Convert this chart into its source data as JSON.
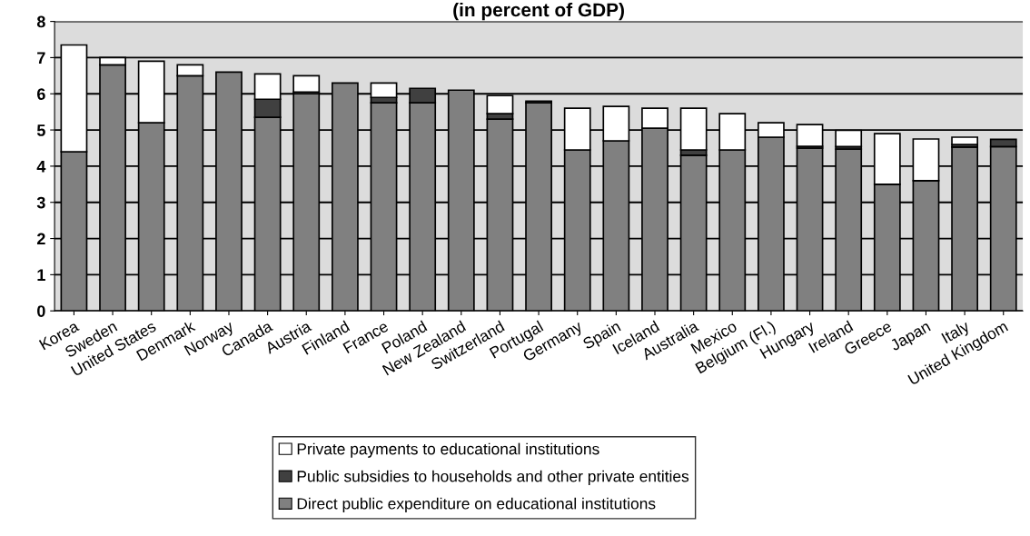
{
  "chart_data": {
    "type": "bar",
    "title": "(in percent of GDP)",
    "stacked": true,
    "categories": [
      "Korea",
      "Sweden",
      "United States",
      "Denmark",
      "Norway",
      "Canada",
      "Austria",
      "Finland",
      "France",
      "Poland",
      "New Zealand",
      "Switzerland",
      "Portugal",
      "Germany",
      "Spain",
      "Iceland",
      "Australia",
      "Mexico",
      "Belgium (Fl.)",
      "Hungary",
      "Ireland",
      "Greece",
      "Japan",
      "Italy",
      "United Kingdom"
    ],
    "series": [
      {
        "name": "Direct public expenditure on educational institutions",
        "color": "#808080",
        "values": [
          4.4,
          6.8,
          5.2,
          6.5,
          6.6,
          5.35,
          6.0,
          6.3,
          5.75,
          5.75,
          6.1,
          5.3,
          5.75,
          4.45,
          4.7,
          5.05,
          4.3,
          4.45,
          4.8,
          4.5,
          4.47,
          3.5,
          3.6,
          4.53,
          4.54
        ]
      },
      {
        "name": "Public subsidies to households and other private entities",
        "color": "#404040",
        "values": [
          0,
          0,
          0,
          0,
          0,
          0.5,
          0.05,
          0,
          0.15,
          0.4,
          0,
          0.15,
          0.05,
          0,
          0,
          0,
          0.15,
          0,
          0,
          0.05,
          0.07,
          0,
          0,
          0.07,
          0.2
        ]
      },
      {
        "name": "Private payments to educational institutions",
        "color": "#ffffff",
        "values": [
          2.95,
          0.2,
          1.7,
          0.3,
          0,
          0.7,
          0.45,
          0,
          0.4,
          0,
          0,
          0.5,
          0,
          1.15,
          0.95,
          0.55,
          1.15,
          1.0,
          0.4,
          0.6,
          0.45,
          1.4,
          1.15,
          0.2,
          0
        ]
      }
    ],
    "ylim": [
      0,
      8
    ],
    "yticks": [
      0,
      1,
      2,
      3,
      4,
      5,
      6,
      7,
      8
    ],
    "grid": "y",
    "legend": "bottom"
  }
}
